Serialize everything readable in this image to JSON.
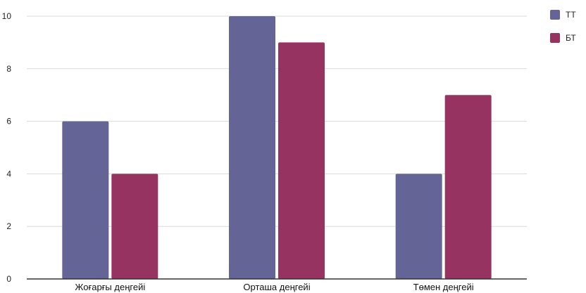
{
  "chart_data": {
    "type": "bar",
    "title": "",
    "xlabel": "",
    "ylabel": "",
    "categories": [
      "Жоғарғы деңгейі",
      "Орташа деңгейі",
      "Төмен деңгейі"
    ],
    "series": [
      {
        "name": "ТТ",
        "values": [
          6,
          10,
          4
        ],
        "color": "#646496"
      },
      {
        "name": "БТ",
        "values": [
          4,
          9,
          7
        ],
        "color": "#973361"
      }
    ],
    "ylim": [
      0,
      10
    ],
    "yticks": [
      0,
      2,
      4,
      6,
      8,
      10
    ],
    "grid": true,
    "legend_position": "top-right"
  }
}
